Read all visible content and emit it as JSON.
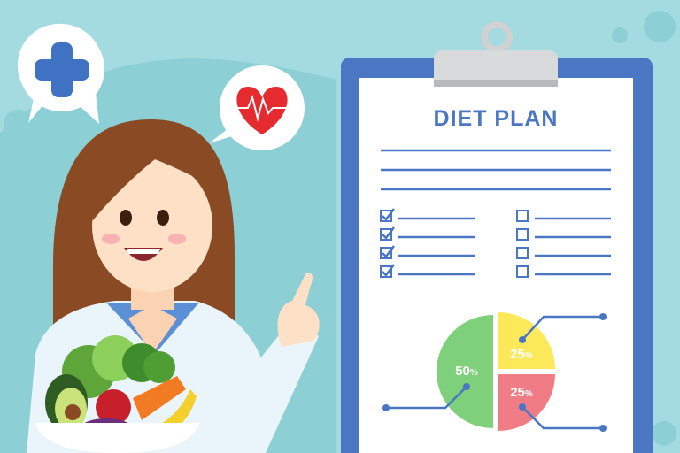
{
  "clipboard": {
    "title": "DIET PLAN",
    "checklist_left": [
      true,
      true,
      true,
      true
    ],
    "checklist_right": [
      false,
      false,
      false,
      false
    ]
  },
  "pie": {
    "slices": [
      {
        "label": "50",
        "unit": "%",
        "value": 50,
        "color": "#7fd07a"
      },
      {
        "label": "25",
        "unit": "%",
        "value": 25,
        "color": "#fbe95a"
      },
      {
        "label": "25",
        "unit": "%",
        "value": 25,
        "color": "#f07c86"
      }
    ]
  },
  "icons": {
    "bubble_left": "plus-icon",
    "bubble_right": "heart-pulse-icon"
  },
  "colors": {
    "background": "#a3dbe0",
    "clipboard_blue": "#4a76c4",
    "line_blue": "#4a76c4"
  }
}
